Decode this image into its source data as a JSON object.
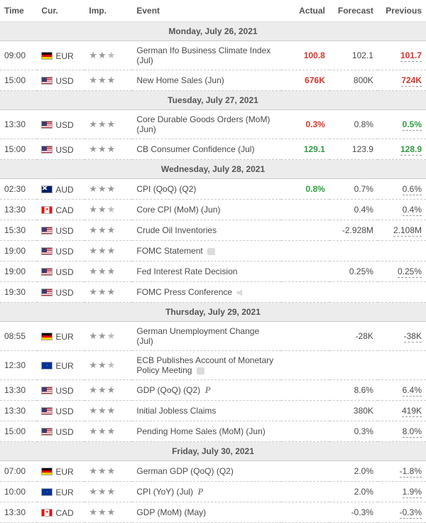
{
  "columns": {
    "time": "Time",
    "cur": "Cur.",
    "imp": "Imp.",
    "event": "Event",
    "actual": "Actual",
    "forecast": "Forecast",
    "previous": "Previous"
  },
  "days": [
    {
      "label": "Monday, July 26, 2021",
      "rows": [
        {
          "time": "09:00",
          "flag": "eur",
          "cur": "EUR",
          "imp": 2,
          "event": "German Ifo Business Climate Index (Jul)",
          "actual": {
            "v": "100.8",
            "cls": "red"
          },
          "forecast": "102.1",
          "previous": {
            "v": "101.7",
            "cls": "red",
            "ul": true
          }
        },
        {
          "time": "15:00",
          "flag": "usd",
          "cur": "USD",
          "imp": 3,
          "event": "New Home Sales (Jun)",
          "actual": {
            "v": "676K",
            "cls": "red"
          },
          "forecast": "800K",
          "previous": {
            "v": "724K",
            "cls": "red",
            "ul": true
          }
        }
      ]
    },
    {
      "label": "Tuesday, July 27, 2021",
      "rows": [
        {
          "time": "13:30",
          "flag": "usd",
          "cur": "USD",
          "imp": 3,
          "event": "Core Durable Goods Orders (MoM) (Jun)",
          "actual": {
            "v": "0.3%",
            "cls": "red"
          },
          "forecast": "0.8%",
          "previous": {
            "v": "0.5%",
            "cls": "green",
            "ul": true
          }
        },
        {
          "time": "15:00",
          "flag": "usd",
          "cur": "USD",
          "imp": 3,
          "event": "CB Consumer Confidence (Jul)",
          "actual": {
            "v": "129.1",
            "cls": "green"
          },
          "forecast": "123.9",
          "previous": {
            "v": "128.9",
            "cls": "green",
            "ul": true
          }
        }
      ]
    },
    {
      "label": "Wednesday, July 28, 2021",
      "rows": [
        {
          "time": "02:30",
          "flag": "aud",
          "cur": "AUD",
          "imp": 3,
          "event": "CPI (QoQ) (Q2)",
          "actual": {
            "v": "0.8%",
            "cls": "green"
          },
          "forecast": "0.7%",
          "previous": {
            "v": "0.6%",
            "ul": true
          }
        },
        {
          "time": "13:30",
          "flag": "cad",
          "cur": "CAD",
          "imp": 2,
          "event": "Core CPI (MoM) (Jun)",
          "actual": null,
          "forecast": "0.4%",
          "previous": {
            "v": "0.4%",
            "ul": true
          }
        },
        {
          "time": "15:30",
          "flag": "usd",
          "cur": "USD",
          "imp": 3,
          "event": "Crude Oil Inventories",
          "actual": null,
          "forecast": "-2.928M",
          "previous": {
            "v": "2.108M",
            "ul": true
          }
        },
        {
          "time": "19:00",
          "flag": "usd",
          "cur": "USD",
          "imp": 3,
          "event": "FOMC Statement",
          "icon": "doc",
          "actual": null,
          "forecast": "",
          "previous": null
        },
        {
          "time": "19:00",
          "flag": "usd",
          "cur": "USD",
          "imp": 3,
          "event": "Fed Interest Rate Decision",
          "actual": null,
          "forecast": "0.25%",
          "previous": {
            "v": "0.25%",
            "ul": true
          }
        },
        {
          "time": "19:30",
          "flag": "usd",
          "cur": "USD",
          "imp": 3,
          "event": "FOMC Press Conference",
          "icon": "speaker",
          "actual": null,
          "forecast": "",
          "previous": null
        }
      ]
    },
    {
      "label": "Thursday, July 29, 2021",
      "rows": [
        {
          "time": "08:55",
          "flag": "eur",
          "cur": "EUR",
          "imp": 2,
          "event": "German Unemployment Change (Jul)",
          "actual": null,
          "forecast": "-28K",
          "previous": {
            "v": "-38K",
            "ul": true
          }
        },
        {
          "time": "12:30",
          "flag": "eu",
          "cur": "EUR",
          "imp": 2,
          "event": "ECB Publishes Account of Monetary Policy Meeting",
          "icon": "doc",
          "actual": null,
          "forecast": "",
          "previous": null
        },
        {
          "time": "13:30",
          "flag": "usd",
          "cur": "USD",
          "imp": 3,
          "event": "GDP (QoQ) (Q2)",
          "icon": "p",
          "actual": null,
          "forecast": "8.6%",
          "previous": {
            "v": "6.4%",
            "ul": true
          }
        },
        {
          "time": "13:30",
          "flag": "usd",
          "cur": "USD",
          "imp": 3,
          "event": "Initial Jobless Claims",
          "actual": null,
          "forecast": "380K",
          "previous": {
            "v": "419K",
            "ul": true
          }
        },
        {
          "time": "15:00",
          "flag": "usd",
          "cur": "USD",
          "imp": 3,
          "event": "Pending Home Sales (MoM) (Jun)",
          "actual": null,
          "forecast": "0.3%",
          "previous": {
            "v": "8.0%",
            "ul": true
          }
        }
      ]
    },
    {
      "label": "Friday, July 30, 2021",
      "rows": [
        {
          "time": "07:00",
          "flag": "eur",
          "cur": "EUR",
          "imp": 3,
          "event": "German GDP (QoQ) (Q2)",
          "actual": null,
          "forecast": "2.0%",
          "previous": {
            "v": "-1.8%",
            "ul": true
          }
        },
        {
          "time": "10:00",
          "flag": "eu",
          "cur": "EUR",
          "imp": 3,
          "event": "CPI (YoY) (Jul)",
          "icon": "p",
          "actual": null,
          "forecast": "2.0%",
          "previous": {
            "v": "1.9%",
            "ul": true
          }
        },
        {
          "time": "13:30",
          "flag": "cad",
          "cur": "CAD",
          "imp": 3,
          "event": "GDP (MoM) (May)",
          "actual": null,
          "forecast": "-0.3%",
          "previous": {
            "v": "-0.3%",
            "ul": true
          }
        }
      ]
    }
  ]
}
